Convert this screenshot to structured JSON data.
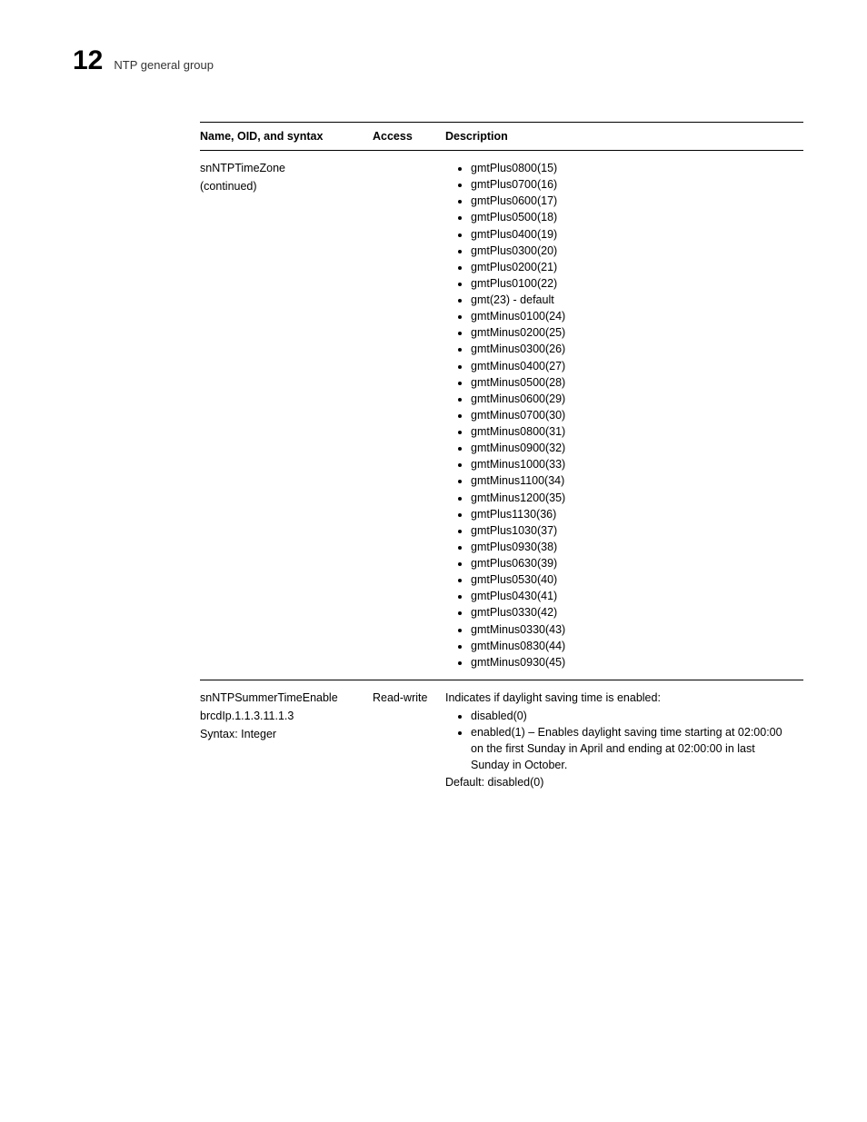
{
  "header": {
    "chapter_number": "12",
    "title": "NTP general group"
  },
  "table": {
    "columns": {
      "name": "Name, OID, and syntax",
      "access": "Access",
      "description": "Description"
    },
    "rows": [
      {
        "name_lines": [
          "snNTPTimeZone",
          "(continued)"
        ],
        "access": "",
        "desc_intro": "",
        "bullets": [
          "gmtPlus0800(15)",
          "gmtPlus0700(16)",
          "gmtPlus0600(17)",
          "gmtPlus0500(18)",
          "gmtPlus0400(19)",
          "gmtPlus0300(20)",
          "gmtPlus0200(21)",
          "gmtPlus0100(22)",
          "gmt(23) - default",
          "gmtMinus0100(24)",
          "gmtMinus0200(25)",
          "gmtMinus0300(26)",
          "gmtMinus0400(27)",
          "gmtMinus0500(28)",
          "gmtMinus0600(29)",
          "gmtMinus0700(30)",
          "gmtMinus0800(31)",
          "gmtMinus0900(32)",
          "gmtMinus1000(33)",
          "gmtMinus1100(34)",
          "gmtMinus1200(35)",
          "gmtPlus1130(36)",
          "gmtPlus1030(37)",
          "gmtPlus0930(38)",
          "gmtPlus0630(39)",
          "gmtPlus0530(40)",
          "gmtPlus0430(41)",
          "gmtPlus0330(42)",
          "gmtMinus0330(43)",
          "gmtMinus0830(44)",
          "gmtMinus0930(45)"
        ],
        "desc_after": ""
      },
      {
        "name_lines": [
          "snNTPSummerTimeEnable",
          "brcdIp.1.1.3.11.1.3",
          "Syntax: Integer"
        ],
        "access": "Read-write",
        "desc_intro": "Indicates if daylight saving time is enabled:",
        "bullets": [
          "disabled(0)",
          "enabled(1) – Enables daylight saving time starting at 02:00:00 on the first Sunday in April and ending at 02:00:00 in last Sunday in October."
        ],
        "desc_after": "Default: disabled(0)"
      }
    ]
  }
}
